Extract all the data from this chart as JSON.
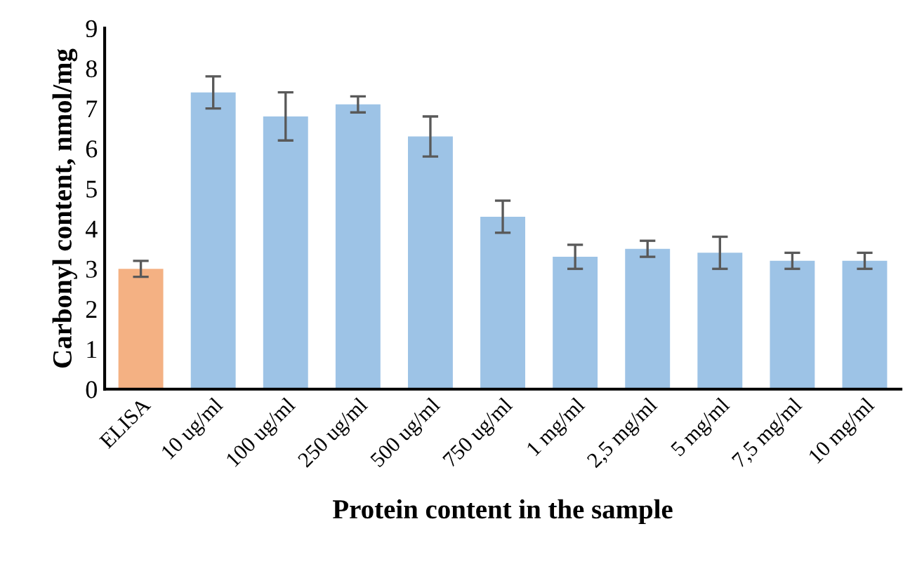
{
  "chart_data": {
    "type": "bar",
    "xlabel": "Protein content in the sample",
    "ylabel": "Carbonyl content, nmol/mg",
    "categories": [
      "ELISA",
      "10 ug/ml",
      "100 ug/ml",
      "250 ug/ml",
      "500 ug/ml",
      "750 ug/ml",
      "1 mg/ml",
      "2,5 mg/ml",
      "5 mg/ml",
      "7,5 mg/ml",
      "10 mg/ml"
    ],
    "values": [
      3.0,
      7.4,
      6.8,
      7.1,
      6.3,
      4.3,
      3.3,
      3.5,
      3.4,
      3.2,
      3.2
    ],
    "errors": [
      0.2,
      0.4,
      0.6,
      0.2,
      0.5,
      0.4,
      0.3,
      0.2,
      0.4,
      0.2,
      0.2
    ],
    "colors": [
      "#f4b183",
      "#9dc3e6",
      "#9dc3e6",
      "#9dc3e6",
      "#9dc3e6",
      "#9dc3e6",
      "#9dc3e6",
      "#9dc3e6",
      "#9dc3e6",
      "#9dc3e6",
      "#9dc3e6"
    ],
    "ylim": [
      0,
      9
    ],
    "yticks": [
      0,
      1,
      2,
      3,
      4,
      5,
      6,
      7,
      8,
      9
    ],
    "grid": false,
    "legend": false
  }
}
